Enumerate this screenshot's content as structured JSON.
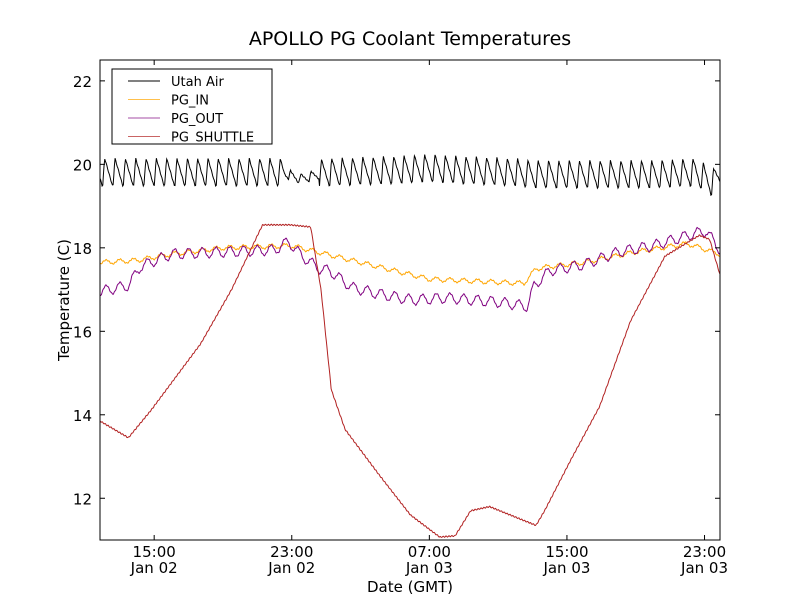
{
  "chart_data": {
    "type": "line",
    "title": "APOLLO PG Coolant Temperatures",
    "xlabel": "Date (GMT)",
    "ylabel": "Temperature (C)",
    "x_units": "hours since Jan 02 00:00 GMT",
    "xlim": [
      11.85,
      47.9
    ],
    "ylim": [
      11,
      22.5
    ],
    "grid": false,
    "legend_position": "top-left",
    "yticks": [
      12,
      14,
      16,
      18,
      20,
      22
    ],
    "xticks": [
      {
        "value": 15,
        "time": "15:00",
        "date": "Jan 02"
      },
      {
        "value": 23,
        "time": "23:00",
        "date": "Jan 02"
      },
      {
        "value": 31,
        "time": "07:00",
        "date": "Jan 03"
      },
      {
        "value": 39,
        "time": "15:00",
        "date": "Jan 03"
      },
      {
        "value": 47,
        "time": "23:00",
        "date": "Jan 03"
      }
    ],
    "series": [
      {
        "name": "Utah Air",
        "color": "#000000",
        "oscillation_period_hours": 0.6,
        "oscillation_amplitude": 0.35,
        "x": [
          11.85,
          15,
          19,
          22.5,
          23.5,
          25,
          29,
          31,
          33,
          36,
          37,
          40,
          44,
          46.5,
          47.5,
          47.9
        ],
        "y": [
          19.8,
          19.8,
          19.8,
          19.8,
          19.65,
          19.8,
          19.85,
          19.9,
          19.85,
          19.8,
          19.75,
          19.75,
          19.75,
          19.8,
          19.55,
          19.8
        ]
      },
      {
        "name": "PG_IN",
        "color": "#ffa500",
        "oscillation_period_hours": 0.8,
        "oscillation_amplitude": 0.05,
        "x": [
          11.85,
          14,
          16,
          19,
          23,
          25,
          28,
          31,
          36.5,
          37.2,
          38,
          40,
          43,
          46,
          47.9
        ],
        "y": [
          17.65,
          17.7,
          17.85,
          18.0,
          18.05,
          17.85,
          17.55,
          17.25,
          17.15,
          17.5,
          17.55,
          17.65,
          17.9,
          18.1,
          17.85
        ]
      },
      {
        "name": "PG_OUT",
        "color": "#800080",
        "oscillation_period_hours": 0.8,
        "oscillation_amplitude": 0.12,
        "x": [
          11.85,
          13.5,
          14.2,
          16,
          22,
          22.8,
          23.6,
          24.6,
          25.2,
          26.5,
          28,
          30,
          32,
          35,
          36.7,
          37.1,
          38,
          40,
          42,
          44,
          46.5,
          47.1,
          47.9
        ],
        "y": [
          16.95,
          17.1,
          17.55,
          17.85,
          17.95,
          18.15,
          17.8,
          17.5,
          17.45,
          17.05,
          16.9,
          16.75,
          16.8,
          16.7,
          16.6,
          17.1,
          17.45,
          17.6,
          17.9,
          18.05,
          18.35,
          18.4,
          17.95
        ]
      },
      {
        "name": "PG_SHUTTLE",
        "color": "#b22222",
        "oscillation_period_hours": 0,
        "oscillation_amplitude": 0,
        "x": [
          11.85,
          13.5,
          14.8,
          17.7,
          19.5,
          21.3,
          22.9,
          24.1,
          24.7,
          25.3,
          26.1,
          28.1,
          29.9,
          31.6,
          32.5,
          33.4,
          34.5,
          35.7,
          37.2,
          37.7,
          39.2,
          40.9,
          42.7,
          44.7,
          46.7,
          47.3,
          47.9
        ],
        "y": [
          13.85,
          13.45,
          14.1,
          15.7,
          17.0,
          18.55,
          18.55,
          18.5,
          17.0,
          14.6,
          13.65,
          12.55,
          11.6,
          11.07,
          11.1,
          11.7,
          11.8,
          11.6,
          11.35,
          11.7,
          12.9,
          14.2,
          16.25,
          17.8,
          18.3,
          18.2,
          17.35
        ]
      }
    ]
  }
}
